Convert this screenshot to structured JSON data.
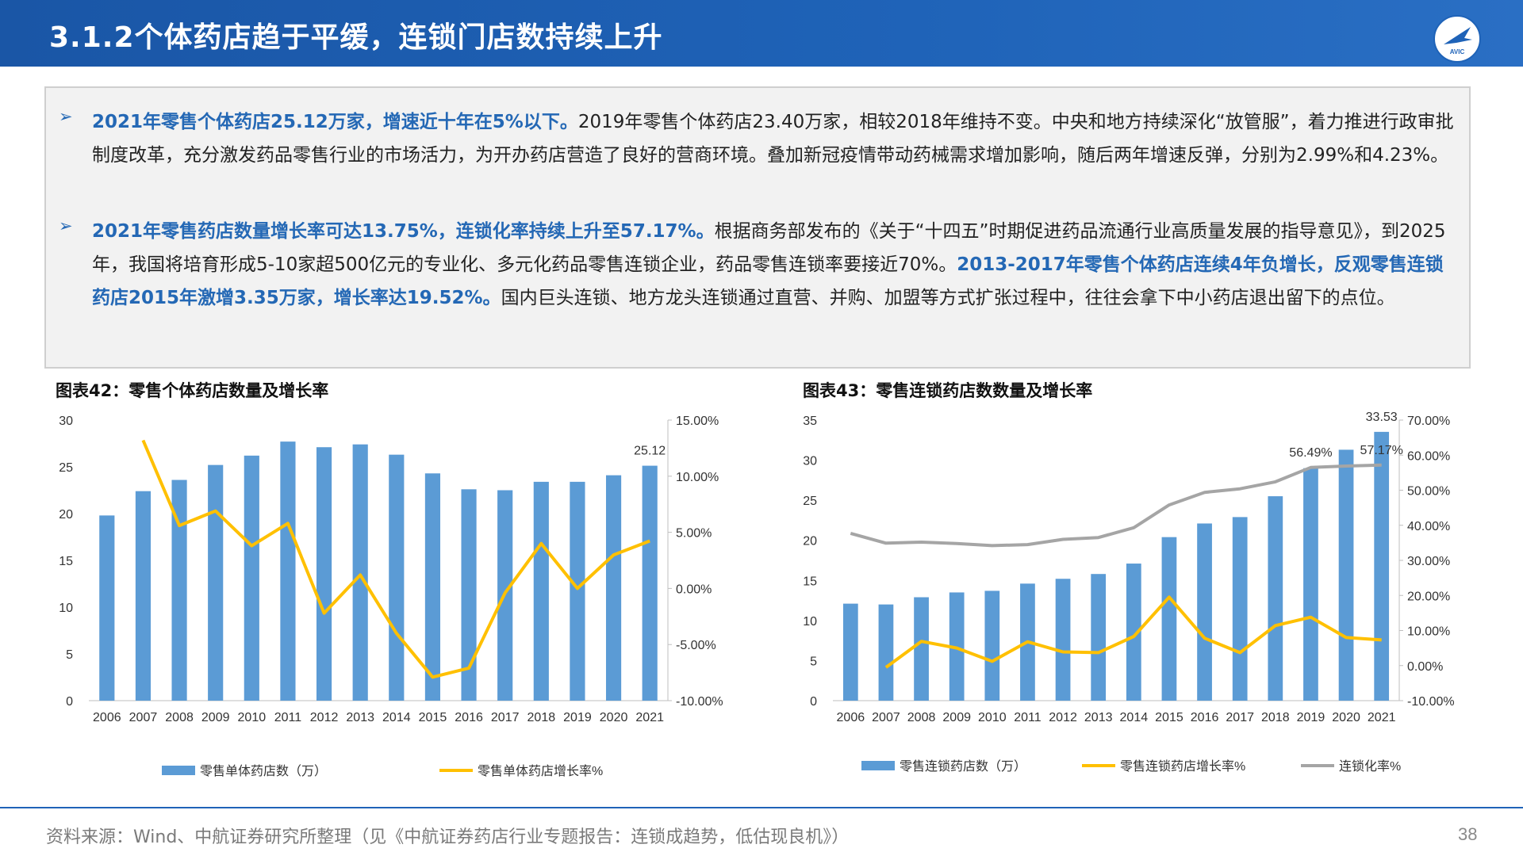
{
  "header": {
    "title": "3.1.2个体药店趋于平缓，连锁门店数持续上升",
    "logo_text": "AVIC"
  },
  "summary": {
    "p1": {
      "highlight": "2021年零售个体药店25.12万家，增速近十年在5%以下。",
      "text": "2019年零售个体药店23.40万家，相较2018年维持不变。中央和地方持续深化“放管服”，着力推进行政审批制度改革，充分激发药品零售行业的市场活力，为开办药店营造了良好的营商环境。叠加新冠疫情带动药械需求增加影响，随后两年增速反弹，分别为2.99%和4.23%。"
    },
    "p2": {
      "highlight1": "2021年零售药店数量增长率可达13.75%，连锁化率持续上升至57.17%。",
      "text1": "根据商务部发布的《关于“十四五”时期促进药品流通行业高质量发展的指导意见》，到2025年，我国将培育形成5-10家超500亿元的专业化、多元化药品零售连锁企业，药品零售连锁率要接近70%。",
      "highlight2": "2013-2017年零售个体药店连续4年负增长，反观零售连锁药店2015年激增3.35万家，增长率达19.52%。",
      "text2": "国内巨头连锁、地方龙头连锁通过直营、并购、加盟等方式扩张过程中，往往会拿下中小药店退出留下的点位。"
    }
  },
  "colors": {
    "bar": "#5b9bd5",
    "growth": "#ffc000",
    "chain_rate": "#a5a5a5",
    "brand": "#1f63b8"
  },
  "chart_data": [
    {
      "type": "bar",
      "title": "图表42：零售个体药店数量及增长率",
      "categories": [
        "2006",
        "2007",
        "2008",
        "2009",
        "2010",
        "2011",
        "2012",
        "2013",
        "2014",
        "2015",
        "2016",
        "2017",
        "2018",
        "2019",
        "2020",
        "2021"
      ],
      "series": [
        {
          "name": "零售单体药店数（万）",
          "type": "bar",
          "axis": "left",
          "values": [
            19.8,
            22.4,
            23.6,
            25.2,
            26.2,
            27.7,
            27.1,
            27.4,
            26.3,
            24.3,
            22.6,
            22.5,
            23.4,
            23.4,
            24.1,
            25.12
          ]
        },
        {
          "name": "零售单体药店增长率%",
          "type": "line",
          "axis": "right",
          "values": [
            null,
            13.2,
            5.6,
            6.9,
            3.8,
            5.8,
            -2.2,
            1.2,
            -4.0,
            -7.9,
            -7.1,
            -0.4,
            4.0,
            0.0,
            2.99,
            4.23
          ]
        }
      ],
      "data_labels": [
        {
          "index": 15,
          "text": "25.12"
        }
      ],
      "ylim_left": [
        0,
        30
      ],
      "yticks_left": [
        "0",
        "5",
        "10",
        "15",
        "20",
        "25",
        "30"
      ],
      "ylim_right": [
        -10,
        15
      ],
      "yticks_right": [
        "-10.00%",
        "-5.00%",
        "0.00%",
        "5.00%",
        "10.00%",
        "15.00%"
      ],
      "legend_position": "bottom"
    },
    {
      "type": "bar",
      "title": "图表43：零售连锁药店数数量及增长率",
      "categories": [
        "2006",
        "2007",
        "2008",
        "2009",
        "2010",
        "2011",
        "2012",
        "2013",
        "2014",
        "2015",
        "2016",
        "2017",
        "2018",
        "2019",
        "2020",
        "2021"
      ],
      "series": [
        {
          "name": "零售连锁药店数（万）",
          "type": "bar",
          "axis": "left",
          "values": [
            12.1,
            12.0,
            12.9,
            13.5,
            13.7,
            14.6,
            15.2,
            15.8,
            17.1,
            20.4,
            22.1,
            22.9,
            25.5,
            29.0,
            31.3,
            33.53
          ]
        },
        {
          "name": "零售连锁药店增长率%",
          "type": "line",
          "axis": "right",
          "values": [
            null,
            -0.5,
            6.9,
            5.0,
            1.2,
            6.8,
            3.9,
            3.7,
            8.3,
            19.52,
            7.8,
            3.7,
            11.4,
            13.8,
            8.0,
            7.3
          ]
        },
        {
          "name": "连锁化率%",
          "type": "line",
          "axis": "right",
          "values": [
            37.7,
            34.9,
            35.2,
            34.8,
            34.2,
            34.5,
            36.0,
            36.5,
            39.3,
            45.8,
            49.4,
            50.4,
            52.4,
            56.49,
            56.9,
            57.17
          ]
        }
      ],
      "data_labels": [
        {
          "series": 0,
          "index": 15,
          "text": "33.53"
        },
        {
          "series": 2,
          "index": 13,
          "text": "56.49%"
        },
        {
          "series": 2,
          "index": 15,
          "text": "57.17%"
        }
      ],
      "ylim_left": [
        0,
        35
      ],
      "yticks_left": [
        "0",
        "5",
        "10",
        "15",
        "20",
        "25",
        "30",
        "35"
      ],
      "ylim_right": [
        -10,
        70
      ],
      "yticks_right": [
        "-10.00%",
        "0.00%",
        "10.00%",
        "20.00%",
        "30.00%",
        "40.00%",
        "50.00%",
        "60.00%",
        "70.00%"
      ],
      "legend_position": "bottom"
    }
  ],
  "footer": {
    "source": "资料来源：Wind、中航证券研究所整理（见《中航证券药店行业专题报告：连锁成趋势，低估现良机》）",
    "page": "38"
  }
}
